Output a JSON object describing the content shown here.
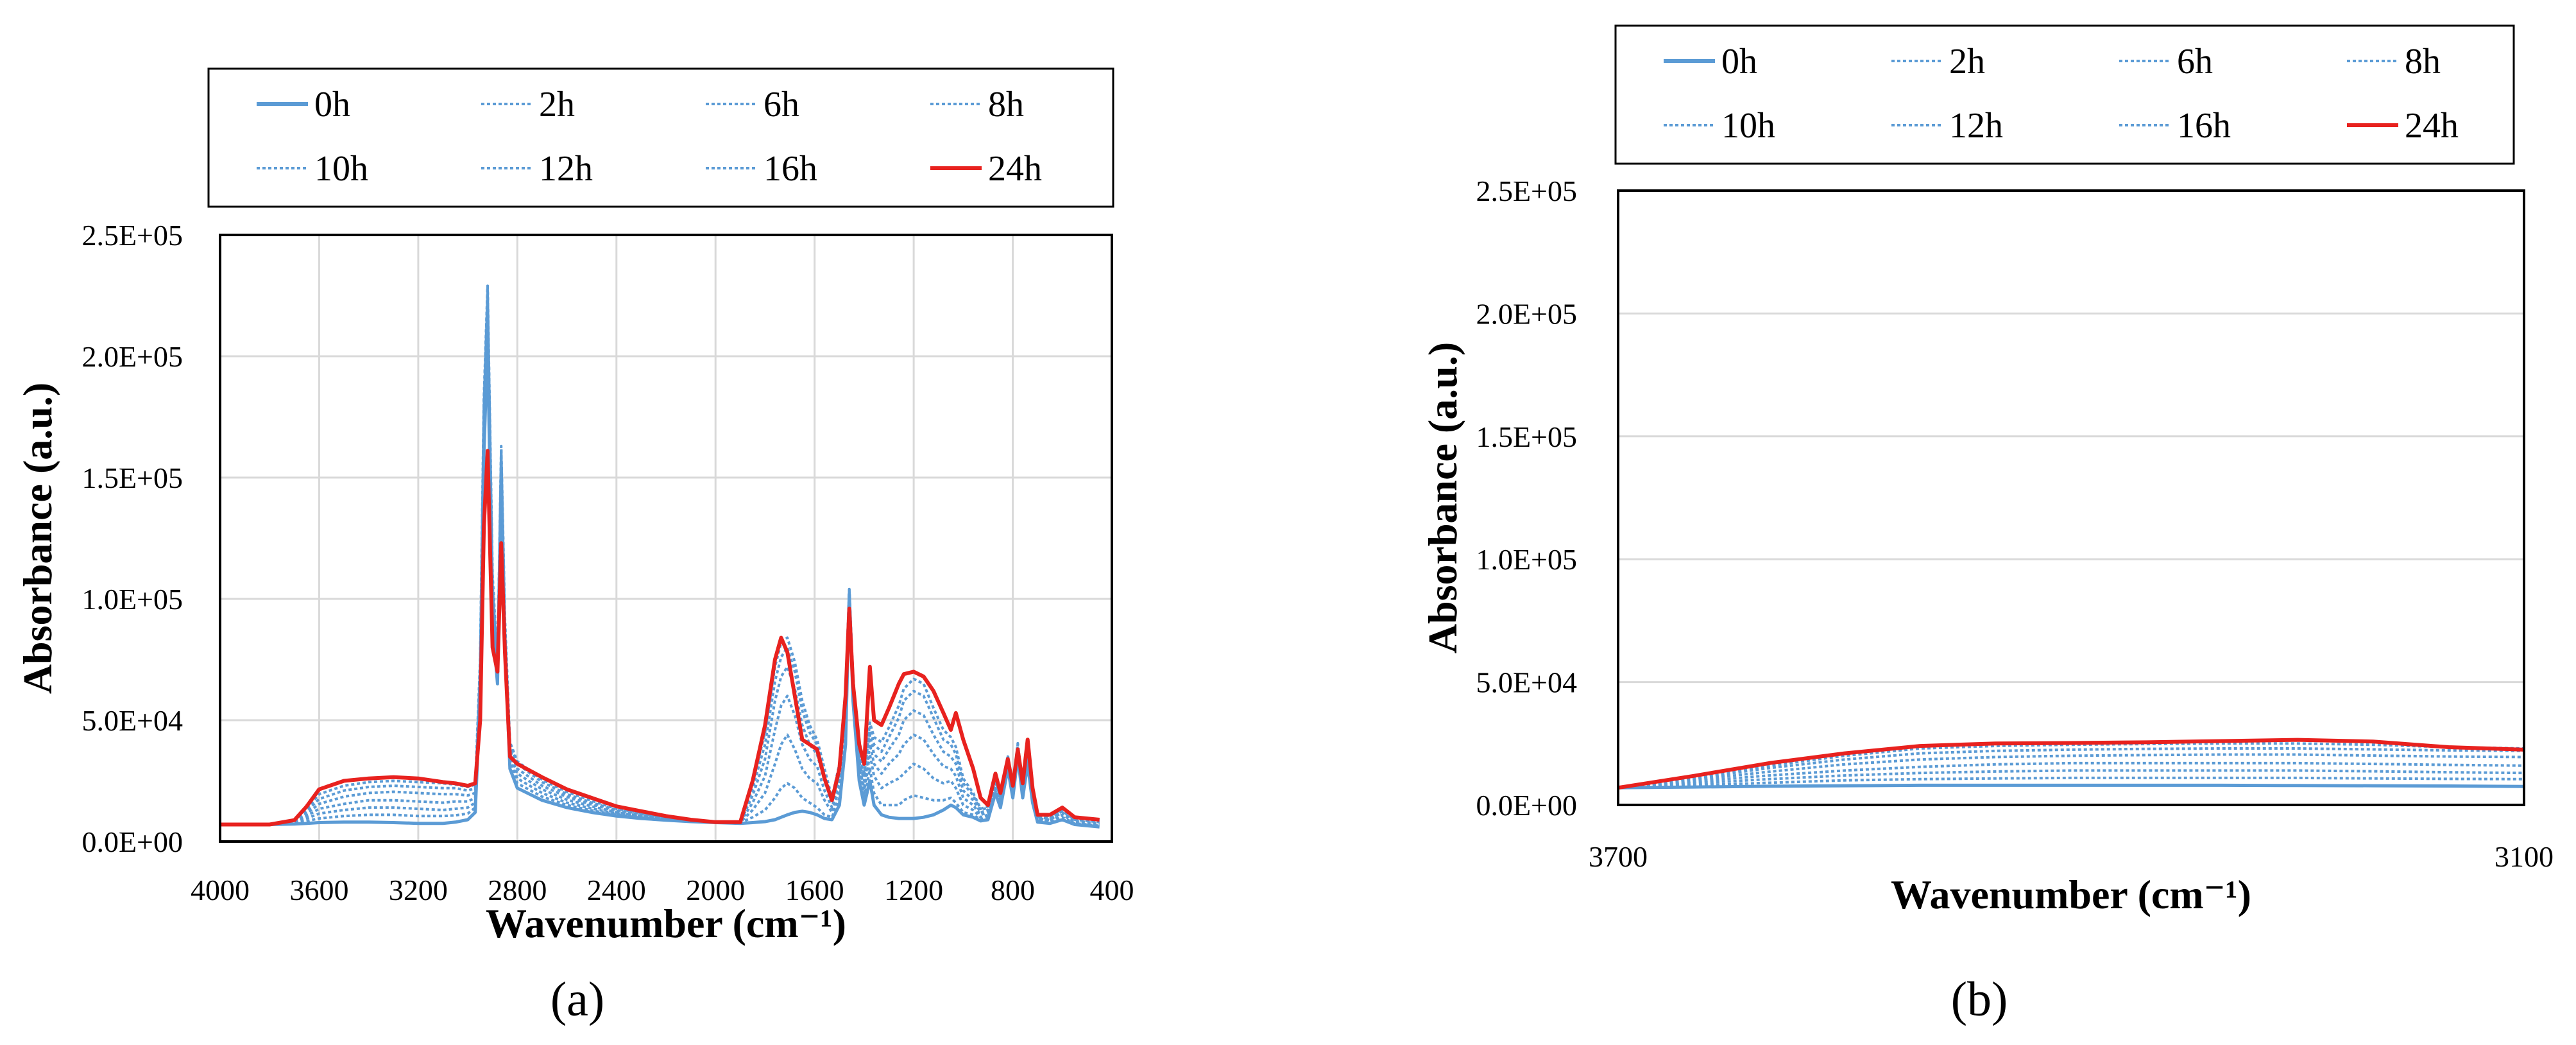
{
  "chart_data": [
    {
      "panel": "a",
      "panel_label": "(a)",
      "type": "line",
      "xlabel": "Wavenumber (cm⁻¹)",
      "ylabel": "Absorbance (a.u.)",
      "xlim": [
        4000,
        400
      ],
      "ylim": [
        0,
        250000
      ],
      "x_ticks": [
        4000,
        3600,
        3200,
        2800,
        2400,
        2000,
        1600,
        1200,
        800,
        400
      ],
      "x_tick_labels": [
        "4000",
        "3600",
        "3200",
        "2800",
        "2400",
        "2000",
        "1600",
        "1200",
        "800",
        "400"
      ],
      "y_ticks": [
        0,
        50000,
        100000,
        150000,
        200000,
        250000
      ],
      "y_tick_labels": [
        "0.0E+00",
        "5.0E+04",
        "1.0E+05",
        "1.5E+05",
        "2.0E+05",
        "2.5E+05"
      ],
      "grid": true,
      "legend_position": "top",
      "x": [
        4000,
        3900,
        3800,
        3700,
        3650,
        3600,
        3500,
        3400,
        3300,
        3200,
        3100,
        3050,
        3000,
        2970,
        2950,
        2935,
        2920,
        2900,
        2880,
        2865,
        2850,
        2830,
        2800,
        2700,
        2600,
        2500,
        2400,
        2300,
        2200,
        2100,
        2000,
        1900,
        1850,
        1800,
        1760,
        1735,
        1710,
        1680,
        1650,
        1620,
        1590,
        1560,
        1530,
        1500,
        1475,
        1460,
        1445,
        1420,
        1400,
        1377,
        1360,
        1330,
        1300,
        1260,
        1240,
        1200,
        1160,
        1120,
        1080,
        1050,
        1030,
        1000,
        960,
        930,
        900,
        870,
        850,
        820,
        800,
        780,
        760,
        740,
        720,
        700,
        650,
        600,
        550,
        500,
        450
      ],
      "series": [
        {
          "name": "0h",
          "style": "solid",
          "color": "#5b9bd5",
          "values": [
            7000,
            7000,
            7000,
            7200,
            7500,
            7800,
            8000,
            8000,
            7800,
            7500,
            7500,
            8000,
            9000,
            12000,
            60000,
            160000,
            205000,
            90000,
            65000,
            150000,
            80000,
            30000,
            22000,
            17000,
            14000,
            12000,
            10500,
            9500,
            8800,
            8200,
            7800,
            7500,
            7800,
            8200,
            9000,
            10000,
            11000,
            12000,
            12500,
            12000,
            11000,
            9500,
            9000,
            15000,
            40000,
            102000,
            58000,
            25000,
            15000,
            25000,
            15000,
            11000,
            10000,
            9500,
            9500,
            9500,
            10000,
            11000,
            13000,
            15000,
            14000,
            11000,
            10000,
            8500,
            9000,
            20000,
            14000,
            30000,
            18000,
            35000,
            18000,
            32000,
            16000,
            8000,
            7500,
            9000,
            7000,
            6500,
            6000
          ]
        },
        {
          "name": "2h",
          "style": "dotted",
          "color": "#5b9bd5",
          "values": [
            7000,
            7000,
            7000,
            7500,
            8500,
            9500,
            10500,
            11000,
            11000,
            10500,
            10500,
            10800,
            11500,
            14000,
            64000,
            168000,
            215000,
            95000,
            66000,
            155000,
            82000,
            32000,
            24000,
            18500,
            15000,
            12800,
            11000,
            9800,
            9000,
            8300,
            7900,
            7700,
            10000,
            13000,
            18000,
            22000,
            24000,
            22000,
            18000,
            16000,
            14000,
            11000,
            10000,
            18000,
            45000,
            103000,
            60000,
            27000,
            17000,
            30000,
            20000,
            15000,
            15000,
            15000,
            17000,
            19000,
            18000,
            17000,
            17000,
            18000,
            16000,
            12000,
            11000,
            9000,
            10000,
            21000,
            15000,
            31000,
            19000,
            36000,
            19000,
            33000,
            17000,
            8500,
            8000,
            10000,
            7500,
            7000,
            6500
          ]
        },
        {
          "name": "6h",
          "style": "dotted",
          "color": "#5b9bd5",
          "values": [
            7000,
            7000,
            7000,
            7800,
            9500,
            11500,
            13000,
            14000,
            14000,
            13500,
            13000,
            13500,
            14000,
            16000,
            68000,
            175000,
            222000,
            100000,
            68000,
            158000,
            84000,
            34000,
            26000,
            20000,
            16000,
            13600,
            11500,
            10200,
            9200,
            8400,
            8000,
            7900,
            13000,
            20000,
            32000,
            40000,
            44000,
            38000,
            30000,
            26000,
            24000,
            17000,
            12000,
            22000,
            52000,
            104000,
            63000,
            29000,
            20000,
            36000,
            27000,
            22000,
            24000,
            26000,
            28000,
            32000,
            30000,
            26000,
            24000,
            25000,
            22000,
            15000,
            13000,
            10000,
            11000,
            23000,
            16000,
            32000,
            20000,
            37000,
            20000,
            34000,
            18000,
            9000,
            8500,
            11000,
            8000,
            7500,
            7000
          ]
        },
        {
          "name": "8h",
          "style": "dotted",
          "color": "#5b9bd5",
          "values": [
            7000,
            7000,
            7000,
            8000,
            10500,
            13500,
            15500,
            17000,
            17000,
            16500,
            16000,
            16500,
            16500,
            18000,
            70000,
            178000,
            225000,
            103000,
            70000,
            160000,
            86000,
            36000,
            28000,
            21500,
            17200,
            14500,
            12000,
            10600,
            9500,
            8500,
            8000,
            8000,
            16000,
            27000,
            46000,
            56000,
            60000,
            52000,
            40000,
            34000,
            31000,
            21000,
            14000,
            25000,
            56000,
            104000,
            65000,
            31000,
            22000,
            40000,
            32000,
            28000,
            32000,
            36000,
            40000,
            44000,
            42000,
            36000,
            31000,
            30000,
            27000,
            18000,
            15000,
            11000,
            12000,
            24000,
            17000,
            33000,
            21000,
            38000,
            21000,
            35000,
            19000,
            9500,
            9000,
            12000,
            8500,
            8000,
            7500
          ]
        },
        {
          "name": "10h",
          "style": "dotted",
          "color": "#5b9bd5",
          "values": [
            7000,
            7000,
            7000,
            8200,
            11500,
            15500,
            18500,
            20000,
            20500,
            20000,
            19500,
            19500,
            19000,
            20000,
            72000,
            180000,
            227000,
            106000,
            71000,
            161000,
            88000,
            38000,
            30000,
            23000,
            18400,
            15300,
            12500,
            11000,
            9800,
            8600,
            8000,
            8000,
            19000,
            34000,
            58000,
            68000,
            72000,
            63000,
            48000,
            40000,
            36000,
            25000,
            16000,
            28000,
            60000,
            104000,
            67000,
            33000,
            25000,
            44000,
            36000,
            33000,
            38000,
            44000,
            50000,
            54000,
            52000,
            44000,
            37000,
            35000,
            32000,
            21000,
            17000,
            12000,
            13000,
            25000,
            18000,
            34000,
            22000,
            39000,
            22000,
            36000,
            20000,
            10000,
            9500,
            12500,
            9000,
            8500,
            8000
          ]
        },
        {
          "name": "12h",
          "style": "dotted",
          "color": "#5b9bd5",
          "values": [
            7000,
            7000,
            7000,
            8400,
            12500,
            17500,
            21000,
            22500,
            23000,
            22500,
            22000,
            22000,
            21000,
            22000,
            74000,
            182000,
            229000,
            108000,
            72000,
            162000,
            90000,
            40000,
            32000,
            24500,
            19500,
            16000,
            13000,
            11400,
            10000,
            8700,
            8000,
            8000,
            22000,
            40000,
            66000,
            76000,
            80000,
            70000,
            54000,
            45000,
            40000,
            28000,
            17000,
            30000,
            62000,
            104000,
            68000,
            35000,
            27000,
            47000,
            40000,
            37000,
            43000,
            51000,
            58000,
            62000,
            60000,
            51000,
            42000,
            40000,
            36000,
            24000,
            19000,
            13000,
            14000,
            26000,
            19000,
            35000,
            23000,
            40000,
            23000,
            37000,
            21000,
            10500,
            10000,
            13000,
            9500,
            9000,
            8500
          ]
        },
        {
          "name": "16h",
          "style": "dotted",
          "color": "#5b9bd5",
          "values": [
            7000,
            7000,
            7000,
            8600,
            13500,
            19500,
            23000,
            24500,
            25000,
            24500,
            24000,
            23500,
            22500,
            23500,
            75000,
            183000,
            229000,
            110000,
            73000,
            163000,
            92000,
            41000,
            33000,
            25500,
            20500,
            16800,
            13500,
            11800,
            10200,
            8800,
            8000,
            8000,
            24000,
            45000,
            72000,
            82000,
            84000,
            74000,
            58000,
            48000,
            42000,
            30000,
            18000,
            32000,
            63000,
            104000,
            69000,
            36000,
            28000,
            49000,
            43000,
            41000,
            47000,
            56000,
            63000,
            67000,
            65000,
            55000,
            46000,
            43000,
            39000,
            26000,
            20000,
            13500,
            14500,
            27000,
            19500,
            35500,
            23500,
            40500,
            23500,
            37500,
            21500,
            11000,
            10500,
            13500,
            10000,
            9500,
            9000
          ]
        },
        {
          "name": "24h",
          "style": "solid",
          "color": "#e8221f",
          "values": [
            7000,
            7000,
            7000,
            8800,
            14500,
            21500,
            25000,
            26000,
            26500,
            26000,
            24500,
            24000,
            23000,
            24000,
            50000,
            130000,
            161000,
            80000,
            70000,
            123000,
            78000,
            35000,
            32000,
            26500,
            21500,
            18000,
            14500,
            12500,
            10500,
            9000,
            8000,
            8000,
            25000,
            48000,
            75000,
            84000,
            78000,
            60000,
            42000,
            40000,
            38000,
            26000,
            17000,
            30000,
            60000,
            96000,
            65000,
            40000,
            32000,
            72000,
            50000,
            48000,
            55000,
            65000,
            69000,
            70000,
            68000,
            62000,
            53000,
            46000,
            53000,
            42000,
            30000,
            18000,
            15000,
            28000,
            20000,
            34000,
            23000,
            38000,
            24000,
            42000,
            22000,
            11000,
            11000,
            14000,
            10000,
            9500,
            9000
          ]
        }
      ]
    },
    {
      "panel": "b",
      "panel_label": "(b)",
      "type": "line",
      "xlabel": "Wavenumber (cm⁻¹)",
      "ylabel": "Absorbance (a.u.)",
      "xlim": [
        3700,
        3100
      ],
      "ylim": [
        0,
        250000
      ],
      "x_ticks": [
        3700,
        3100
      ],
      "x_tick_labels": [
        "3700",
        "3100"
      ],
      "y_ticks": [
        0,
        50000,
        100000,
        150000,
        200000,
        250000
      ],
      "y_tick_labels": [
        "0.0E+00",
        "5.0E+04",
        "1.0E+05",
        "1.5E+05",
        "2.0E+05",
        "2.5E+05"
      ],
      "grid": true,
      "legend_position": "top",
      "x": [
        3700,
        3650,
        3600,
        3550,
        3500,
        3450,
        3400,
        3350,
        3300,
        3250,
        3200,
        3150,
        3100
      ],
      "series": [
        {
          "name": "0h",
          "style": "solid",
          "color": "#5b9bd5",
          "values": [
            7000,
            7300,
            7600,
            7800,
            8000,
            8000,
            8000,
            8000,
            8000,
            7900,
            7800,
            7700,
            7500
          ]
        },
        {
          "name": "2h",
          "style": "dotted",
          "color": "#5b9bd5",
          "values": [
            7000,
            8000,
            9000,
            10000,
            10500,
            10800,
            11000,
            11000,
            11000,
            11000,
            10800,
            10600,
            10500
          ]
        },
        {
          "name": "6h",
          "style": "dotted",
          "color": "#5b9bd5",
          "values": [
            7000,
            8800,
            10500,
            12000,
            13000,
            13600,
            14000,
            14000,
            14000,
            14000,
            13700,
            13300,
            13000
          ]
        },
        {
          "name": "8h",
          "style": "dotted",
          "color": "#5b9bd5",
          "values": [
            7000,
            9500,
            12000,
            14000,
            15500,
            16500,
            17000,
            17000,
            17000,
            17000,
            16700,
            16300,
            16000
          ]
        },
        {
          "name": "10h",
          "style": "dotted",
          "color": "#5b9bd5",
          "values": [
            7000,
            10200,
            13500,
            16500,
            18500,
            19500,
            20000,
            20300,
            20500,
            20500,
            20100,
            19700,
            19500
          ]
        },
        {
          "name": "12h",
          "style": "dotted",
          "color": "#5b9bd5",
          "values": [
            7000,
            10800,
            15000,
            18500,
            21000,
            22000,
            22500,
            22800,
            23000,
            23000,
            22600,
            22200,
            22000
          ]
        },
        {
          "name": "16h",
          "style": "dotted",
          "color": "#5b9bd5",
          "values": [
            7000,
            11300,
            16000,
            20000,
            23000,
            24000,
            24500,
            24800,
            25000,
            25000,
            24500,
            23500,
            23000
          ]
        },
        {
          "name": "24h",
          "style": "solid",
          "color": "#e8221f",
          "values": [
            7000,
            11800,
            17000,
            21000,
            24000,
            25000,
            25200,
            25500,
            26000,
            26500,
            25800,
            23500,
            22500
          ]
        }
      ]
    }
  ]
}
